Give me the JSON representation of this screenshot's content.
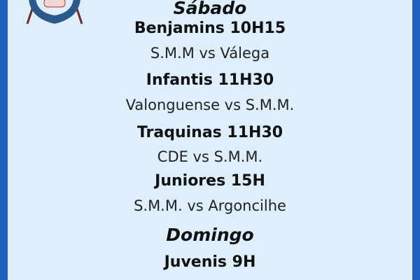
{
  "logo": {
    "icon": "anchor-club-crest-icon",
    "color": "#2b5a8a"
  },
  "colors": {
    "border": "#1f5fbf",
    "background": "#deeefb"
  },
  "schedule": [
    {
      "type": "day",
      "text": "Sábado"
    },
    {
      "type": "cat",
      "text": "Benjamins 10H15"
    },
    {
      "type": "match",
      "text": "S.M.M vs Válega"
    },
    {
      "type": "cat",
      "text": "Infantis 11H30"
    },
    {
      "type": "match",
      "text": "Valonguense vs S.M.M."
    },
    {
      "type": "cat",
      "text": "Traquinas 11H30"
    },
    {
      "type": "match",
      "text": "CDE vs S.M.M."
    },
    {
      "type": "cat",
      "text": "Juniores 15H"
    },
    {
      "type": "match",
      "text": "S.M.M. vs Argoncilhe"
    },
    {
      "type": "day",
      "text": "Domingo"
    },
    {
      "type": "cat",
      "text": "Juvenis 9H"
    }
  ]
}
